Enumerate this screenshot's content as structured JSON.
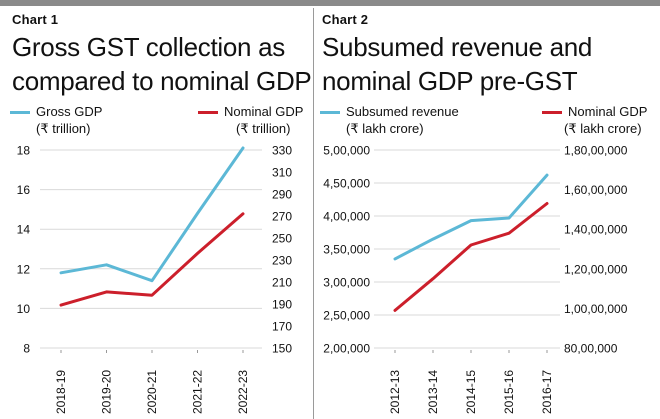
{
  "chart_data": [
    {
      "type": "line",
      "label": "Chart 1",
      "title_lines": [
        "Gross GST collection as",
        "compared to nominal GDP"
      ],
      "categories": [
        "2018-19",
        "2019-20",
        "2020-21",
        "2021-22",
        "2022-23"
      ],
      "series": [
        {
          "name": "Gross GDP",
          "unit": "(₹ trillion)",
          "axis": "left",
          "color": "#5cb8d6",
          "values": [
            11.8,
            12.2,
            11.4,
            14.8,
            18.1
          ]
        },
        {
          "name": "Nominal GDP",
          "unit": "(₹ trillion)",
          "axis": "right",
          "color": "#cc1f2b",
          "values": [
            189,
            201,
            198,
            236,
            272
          ]
        }
      ],
      "left_axis": {
        "ticks": [
          "18",
          "16",
          "14",
          "12",
          "10",
          "8"
        ],
        "ylim": [
          8,
          18
        ]
      },
      "right_axis": {
        "ticks": [
          "330",
          "310",
          "290",
          "270",
          "250",
          "230",
          "210",
          "190",
          "170",
          "150"
        ],
        "ylim": [
          150,
          330
        ]
      }
    },
    {
      "type": "line",
      "label": "Chart 2",
      "title_lines": [
        "Subsumed revenue and",
        "nominal GDP pre-GST"
      ],
      "categories": [
        "2012-13",
        "2013-14",
        "2014-15",
        "2015-16",
        "2016-17"
      ],
      "series": [
        {
          "name": "Subsumed revenue",
          "unit": "(₹ lakh crore)",
          "axis": "left",
          "color": "#5cb8d6",
          "values": [
            335000,
            365000,
            393000,
            397000,
            462000
          ]
        },
        {
          "name": "Nominal GDP",
          "unit": "(₹ lakh crore)",
          "axis": "right",
          "color": "#cc1f2b",
          "values": [
            9900000,
            11500000,
            13200000,
            13800000,
            15300000
          ]
        }
      ],
      "left_axis": {
        "ticks": [
          "5,00,000",
          "4,50,000",
          "4,00,000",
          "3,50,000",
          "3,00,000",
          "2,50,000",
          "2,00,000"
        ],
        "ylim": [
          200000,
          500000
        ]
      },
      "right_axis": {
        "ticks": [
          "1,80,00,000",
          "1,60,00,000",
          "1,40,00,000",
          "1,20,00,000",
          "1,00,00,000",
          "80,00,000"
        ],
        "ylim": [
          8000000,
          18000000
        ]
      }
    }
  ]
}
